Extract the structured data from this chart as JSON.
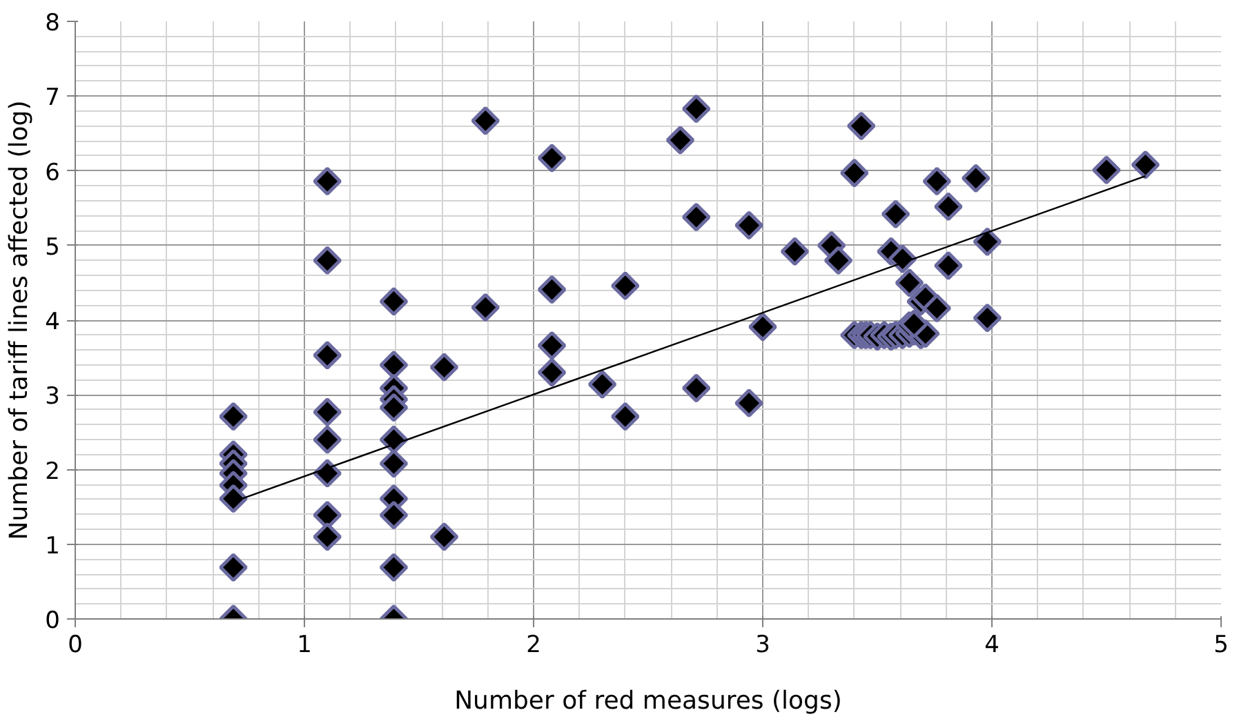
{
  "chart_data": {
    "type": "scatter",
    "xlabel": "Number of red measures (logs)",
    "ylabel": "Number of tariff lines affected (log)",
    "xlim": [
      0,
      5
    ],
    "ylim": [
      0,
      8
    ],
    "xticks": [
      0,
      1,
      2,
      3,
      4,
      5
    ],
    "yticks": [
      0,
      1,
      2,
      3,
      4,
      5,
      6,
      7,
      8
    ],
    "grid": true,
    "marker": "diamond",
    "series": [
      {
        "color": "#000000",
        "x": [
          0.69,
          0.69,
          0.69,
          0.69,
          0.69,
          0.69,
          0.69,
          0.69,
          1.1,
          1.1,
          1.1,
          1.1,
          1.1,
          1.1,
          1.1,
          1.1,
          1.39,
          1.39,
          1.39,
          1.39,
          1.39,
          1.39,
          1.39,
          1.39,
          1.39,
          1.39,
          1.39,
          1.61,
          1.61,
          1.79,
          1.79,
          2.08,
          2.08,
          2.08,
          2.08,
          2.3,
          2.4,
          2.4,
          2.64,
          2.71,
          2.71,
          2.71,
          2.94,
          2.94,
          3.0,
          3.14,
          3.3,
          3.33,
          3.4,
          3.43,
          3.56,
          3.58,
          3.61,
          3.64,
          3.69,
          3.71,
          3.76,
          3.76,
          3.81,
          3.81,
          3.93,
          3.98,
          3.98,
          4.5,
          4.67,
          3.4,
          3.43,
          3.45,
          3.47,
          3.5,
          3.53,
          3.56,
          3.58,
          3.61,
          3.64,
          3.66,
          3.69,
          3.71,
          3.64,
          3.66
        ],
        "values": [
          2.71,
          2.2,
          2.08,
          1.95,
          1.79,
          1.61,
          0.69,
          0,
          5.86,
          4.8,
          3.53,
          2.77,
          2.4,
          1.95,
          1.39,
          1.1,
          4.25,
          3.4,
          3.09,
          2.94,
          2.83,
          2.4,
          2.08,
          1.61,
          1.39,
          0.69,
          0,
          3.37,
          1.1,
          6.67,
          4.17,
          6.17,
          4.41,
          3.66,
          3.3,
          3.14,
          4.46,
          2.71,
          6.41,
          6.83,
          5.38,
          3.09,
          5.27,
          2.89,
          3.91,
          4.92,
          5.0,
          4.8,
          5.97,
          6.6,
          4.92,
          5.42,
          4.82,
          4.5,
          4.25,
          4.3,
          5.86,
          4.16,
          5.52,
          4.73,
          5.9,
          5.05,
          4.03,
          6.01,
          6.08,
          3.8,
          3.8,
          3.8,
          3.8,
          3.78,
          3.8,
          3.78,
          3.8,
          3.8,
          3.82,
          3.85,
          3.8,
          3.82,
          3.93,
          3.95
        ]
      },
      {
        "type": "line",
        "color": "#000000",
        "marker": "none",
        "x": [
          0.69,
          4.67
        ],
        "values": [
          1.57,
          5.93
        ]
      }
    ]
  }
}
